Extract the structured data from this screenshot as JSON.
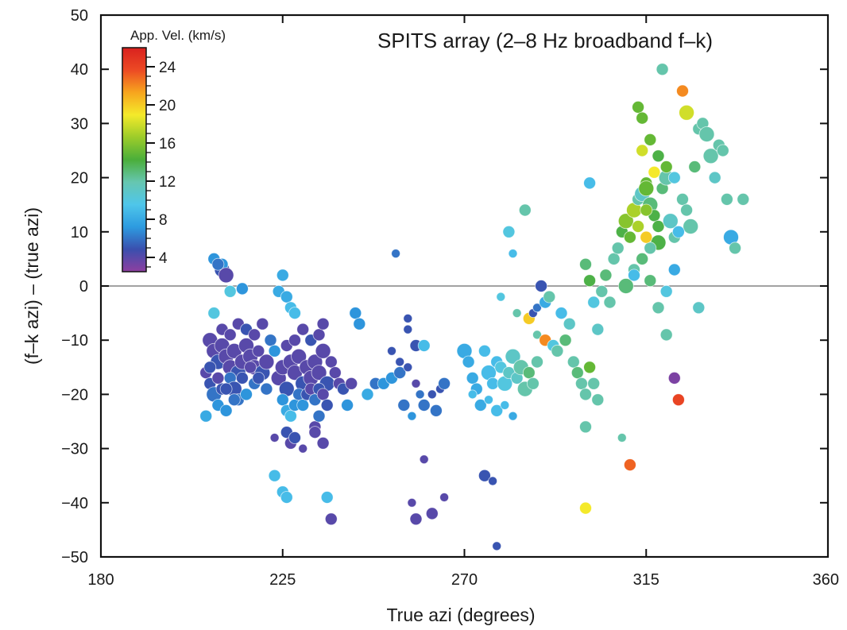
{
  "chart_data": {
    "type": "scatter",
    "title": "SPITS array (2–8 Hz broadband f–k)",
    "xlabel": "True azi (degrees)",
    "ylabel": "(f–k azi) – (true azi)",
    "xlim": [
      180,
      360
    ],
    "ylim": [
      -50,
      50
    ],
    "x_ticks": [
      180,
      225,
      270,
      315,
      360
    ],
    "x_tick_labels": [
      "180",
      "225",
      "270",
      "315",
      "360"
    ],
    "y_ticks": [
      -50,
      -40,
      -30,
      -20,
      -10,
      0,
      10,
      20,
      30,
      40,
      50
    ],
    "y_tick_labels": [
      "−50",
      "−40",
      "−30",
      "−20",
      "−10",
      "0",
      "10",
      "20",
      "30",
      "40",
      "50"
    ],
    "reference_line_y": 0,
    "grid": false,
    "colorbar": {
      "title": "App. Vel. (km/s)",
      "range": [
        2.5,
        26
      ],
      "ticks": [
        4,
        8,
        12,
        16,
        20,
        24
      ],
      "tick_labels": [
        "4",
        "8",
        "12",
        "16",
        "20",
        "24"
      ],
      "colors": [
        "#8e3fa0",
        "#3a4fae",
        "#2d9be0",
        "#4fc6ea",
        "#66c6b0",
        "#4aae3a",
        "#9ccc2a",
        "#f4ea2a",
        "#f7a51e",
        "#ec4a24",
        "#d9211f"
      ]
    },
    "legend": "colorbar top-left",
    "points_encoding": [
      "azimuth_deg",
      "azimuth_residual_deg",
      "apparent_velocity_kms",
      "size_class"
    ],
    "points": [
      [
        208,
        5,
        7,
        2
      ],
      [
        210,
        3,
        5,
        3
      ],
      [
        210,
        4,
        7,
        2
      ],
      [
        211,
        2,
        4,
        3
      ],
      [
        209,
        4,
        6,
        2
      ],
      [
        212,
        -1,
        10,
        2
      ],
      [
        208,
        -5,
        10,
        2
      ],
      [
        215,
        -0.5,
        7,
        2
      ],
      [
        207,
        -10,
        4,
        3
      ],
      [
        208,
        -12,
        4,
        3
      ],
      [
        209,
        -14,
        5,
        3
      ],
      [
        210,
        -11,
        4,
        3
      ],
      [
        211,
        -13,
        4,
        3
      ],
      [
        212,
        -15,
        4,
        3
      ],
      [
        213,
        -12,
        4,
        3
      ],
      [
        214,
        -16,
        5,
        3
      ],
      [
        215,
        -14,
        4,
        3
      ],
      [
        216,
        -11,
        4,
        3
      ],
      [
        217,
        -13,
        4,
        3
      ],
      [
        218,
        -15,
        4,
        3
      ],
      [
        219,
        -12,
        4,
        2
      ],
      [
        220,
        -16,
        5,
        3
      ],
      [
        221,
        -14,
        4,
        3
      ],
      [
        206,
        -16,
        4,
        2
      ],
      [
        207,
        -18,
        5,
        2
      ],
      [
        208,
        -20,
        6,
        3
      ],
      [
        209,
        -22,
        7,
        2
      ],
      [
        210,
        -19,
        5,
        2
      ],
      [
        211,
        -23,
        7,
        2
      ],
      [
        212,
        -17,
        6,
        2
      ],
      [
        213,
        -19,
        5,
        3
      ],
      [
        214,
        -21,
        6,
        2
      ],
      [
        206,
        -24,
        8,
        2
      ],
      [
        216,
        -20,
        7,
        2
      ],
      [
        218,
        -18,
        6,
        2
      ],
      [
        210,
        -8,
        4,
        2
      ],
      [
        212,
        -9,
        4,
        2
      ],
      [
        214,
        -7,
        4,
        2
      ],
      [
        216,
        -8,
        5,
        2
      ],
      [
        218,
        -9,
        4,
        2
      ],
      [
        220,
        -7,
        4,
        2
      ],
      [
        222,
        -10,
        6,
        2
      ],
      [
        207,
        -15,
        5,
        2
      ],
      [
        209,
        -17,
        4,
        2
      ],
      [
        211,
        -19,
        5,
        2
      ],
      [
        213,
        -21,
        6,
        2
      ],
      [
        215,
        -17,
        5,
        2
      ],
      [
        217,
        -15,
        4,
        2
      ],
      [
        219,
        -17,
        5,
        2
      ],
      [
        221,
        -19,
        6,
        2
      ],
      [
        223,
        -12,
        7,
        2
      ],
      [
        224,
        -17,
        4,
        3
      ],
      [
        225,
        -15,
        4,
        3
      ],
      [
        226,
        -19,
        5,
        3
      ],
      [
        227,
        -14,
        4,
        3
      ],
      [
        228,
        -16,
        4,
        3
      ],
      [
        229,
        -13,
        4,
        3
      ],
      [
        230,
        -18,
        5,
        3
      ],
      [
        231,
        -15,
        4,
        3
      ],
      [
        232,
        -17,
        4,
        3
      ],
      [
        233,
        -14,
        4,
        3
      ],
      [
        234,
        -16,
        4,
        3
      ],
      [
        235,
        -12,
        4,
        3
      ],
      [
        236,
        -18,
        5,
        3
      ],
      [
        237,
        -14,
        4,
        2
      ],
      [
        238,
        -16,
        4,
        2
      ],
      [
        225,
        -21,
        7,
        2
      ],
      [
        226,
        -23,
        8,
        2
      ],
      [
        227,
        -24,
        9,
        2
      ],
      [
        228,
        -22,
        7,
        2
      ],
      [
        229,
        -20,
        6,
        2
      ],
      [
        230,
        -22,
        7,
        2
      ],
      [
        231,
        -20,
        5,
        2
      ],
      [
        232,
        -19,
        4,
        2
      ],
      [
        233,
        -21,
        6,
        2
      ],
      [
        234,
        -19,
        5,
        2
      ],
      [
        235,
        -20,
        4,
        2
      ],
      [
        236,
        -22,
        5,
        2
      ],
      [
        226,
        -11,
        4,
        2
      ],
      [
        228,
        -10,
        4,
        2
      ],
      [
        230,
        -8,
        4,
        2
      ],
      [
        232,
        -10,
        5,
        2
      ],
      [
        234,
        -9,
        4,
        2
      ],
      [
        235,
        -7,
        4,
        2
      ],
      [
        224,
        -1,
        8,
        2
      ],
      [
        225,
        2,
        8,
        2
      ],
      [
        226,
        -2,
        8,
        2
      ],
      [
        227,
        -4,
        9,
        2
      ],
      [
        228,
        -5,
        9,
        2
      ],
      [
        223,
        -28,
        4,
        1
      ],
      [
        226,
        -27,
        5,
        2
      ],
      [
        227,
        -29,
        4,
        2
      ],
      [
        228,
        -28,
        5,
        2
      ],
      [
        230,
        -30,
        4,
        1
      ],
      [
        233,
        -26,
        4,
        2
      ],
      [
        234,
        -24,
        6,
        2
      ],
      [
        235,
        -29,
        4,
        2
      ],
      [
        233,
        -27,
        4,
        2
      ],
      [
        223,
        -35,
        9,
        2
      ],
      [
        225,
        -38,
        9,
        2
      ],
      [
        226,
        -39,
        9,
        2
      ],
      [
        236,
        -39,
        9,
        2
      ],
      [
        237,
        -43,
        4,
        2
      ],
      [
        239,
        -18,
        4,
        2
      ],
      [
        240,
        -19,
        5,
        2
      ],
      [
        241,
        -22,
        7,
        2
      ],
      [
        242,
        -18,
        4,
        2
      ],
      [
        243,
        -5,
        7,
        2
      ],
      [
        244,
        -7,
        7,
        2
      ],
      [
        246,
        -20,
        8,
        2
      ],
      [
        248,
        -18,
        6,
        2
      ],
      [
        250,
        -18,
        7,
        2
      ],
      [
        252,
        -17,
        7,
        2
      ],
      [
        254,
        -16,
        6,
        2
      ],
      [
        253,
        6,
        6,
        1
      ],
      [
        256,
        -6,
        5,
        1
      ],
      [
        256,
        -8,
        5,
        1
      ],
      [
        258,
        -11,
        5,
        2
      ],
      [
        260,
        -11,
        9,
        2
      ],
      [
        252,
        -12,
        5,
        1
      ],
      [
        254,
        -14,
        5,
        1
      ],
      [
        256,
        -15,
        5,
        1
      ],
      [
        258,
        -18,
        4,
        1
      ],
      [
        255,
        -22,
        6,
        2
      ],
      [
        257,
        -24,
        7,
        1
      ],
      [
        259,
        -20,
        6,
        1
      ],
      [
        260,
        -22,
        6,
        2
      ],
      [
        262,
        -20,
        5,
        1
      ],
      [
        263,
        -23,
        6,
        2
      ],
      [
        264,
        -19,
        5,
        1
      ],
      [
        265,
        -18,
        6,
        2
      ],
      [
        260,
        -32,
        4,
        1
      ],
      [
        257,
        -40,
        4,
        1
      ],
      [
        258,
        -43,
        4,
        2
      ],
      [
        262,
        -42,
        4,
        2
      ],
      [
        265,
        -39,
        4,
        1
      ],
      [
        270,
        -12,
        8,
        3
      ],
      [
        271,
        -14,
        8,
        2
      ],
      [
        272,
        -17,
        8,
        2
      ],
      [
        273,
        -19,
        8,
        2
      ],
      [
        275,
        -12,
        9,
        2
      ],
      [
        276,
        -16,
        9,
        3
      ],
      [
        277,
        -18,
        9,
        2
      ],
      [
        278,
        -14,
        9,
        2
      ],
      [
        279,
        -15,
        10,
        2
      ],
      [
        280,
        -18,
        10,
        3
      ],
      [
        281,
        -16,
        11,
        2
      ],
      [
        282,
        -13,
        11,
        3
      ],
      [
        283,
        -17,
        11,
        2
      ],
      [
        284,
        -15,
        12,
        3
      ],
      [
        285,
        -19,
        12,
        3
      ],
      [
        286,
        -16,
        13,
        2
      ],
      [
        287,
        -18,
        12,
        2
      ],
      [
        288,
        -14,
        12,
        2
      ],
      [
        272,
        -20,
        9,
        1
      ],
      [
        274,
        -22,
        8,
        2
      ],
      [
        276,
        -21,
        9,
        1
      ],
      [
        278,
        -23,
        9,
        2
      ],
      [
        280,
        -22,
        9,
        1
      ],
      [
        282,
        -24,
        8,
        1
      ],
      [
        275,
        -35,
        5,
        2
      ],
      [
        277,
        -36,
        5,
        1
      ],
      [
        278,
        -48,
        5,
        1
      ],
      [
        279,
        -2,
        10,
        1
      ],
      [
        281,
        10,
        10,
        2
      ],
      [
        282,
        6,
        9,
        1
      ],
      [
        285,
        14,
        12,
        2
      ],
      [
        283,
        -5,
        12,
        1
      ],
      [
        286,
        -6,
        20,
        2
      ],
      [
        287,
        -5,
        5,
        1
      ],
      [
        288,
        -4,
        6,
        1
      ],
      [
        288,
        -9,
        12,
        1
      ],
      [
        289,
        0,
        5,
        2
      ],
      [
        290,
        -3,
        8,
        2
      ],
      [
        290,
        -10,
        22,
        2
      ],
      [
        291,
        -2,
        12,
        2
      ],
      [
        292,
        -11,
        10,
        2
      ],
      [
        293,
        -12,
        12,
        2
      ],
      [
        294,
        -5,
        9,
        2
      ],
      [
        295,
        -10,
        13,
        2
      ],
      [
        296,
        -7,
        11,
        2
      ],
      [
        297,
        -14,
        12,
        2
      ],
      [
        298,
        -16,
        13,
        2
      ],
      [
        299,
        -18,
        12,
        2
      ],
      [
        300,
        -20,
        12,
        2
      ],
      [
        301,
        -15,
        15,
        2
      ],
      [
        302,
        -18,
        12,
        2
      ],
      [
        303,
        -21,
        12,
        2
      ],
      [
        300,
        -26,
        12,
        2
      ],
      [
        300,
        -41,
        19,
        2
      ],
      [
        301,
        19,
        9,
        2
      ],
      [
        300,
        4,
        13,
        2
      ],
      [
        301,
        1,
        14,
        2
      ],
      [
        302,
        -3,
        10,
        2
      ],
      [
        303,
        -8,
        11,
        2
      ],
      [
        304,
        -1,
        12,
        2
      ],
      [
        305,
        2,
        13,
        2
      ],
      [
        306,
        -3,
        12,
        2
      ],
      [
        307,
        5,
        12,
        2
      ],
      [
        308,
        7,
        12,
        2
      ],
      [
        309,
        10,
        14,
        2
      ],
      [
        310,
        12,
        16,
        3
      ],
      [
        311,
        9,
        15,
        2
      ],
      [
        312,
        14,
        17,
        3
      ],
      [
        313,
        16,
        12,
        2
      ],
      [
        314,
        17,
        11,
        3
      ],
      [
        315,
        19,
        15,
        2
      ],
      [
        316,
        15,
        13,
        3
      ],
      [
        317,
        13,
        14,
        2
      ],
      [
        318,
        11,
        14,
        2
      ],
      [
        319,
        18,
        13,
        2
      ],
      [
        320,
        20,
        12,
        3
      ],
      [
        321,
        12,
        11,
        3
      ],
      [
        322,
        9,
        12,
        2
      ],
      [
        310,
        0,
        13,
        3
      ],
      [
        312,
        3,
        12,
        2
      ],
      [
        314,
        5,
        13,
        2
      ],
      [
        316,
        1,
        13,
        2
      ],
      [
        318,
        -4,
        12,
        2
      ],
      [
        320,
        -1,
        10,
        2
      ],
      [
        309,
        -28,
        12,
        1
      ],
      [
        311,
        -33,
        23,
        2
      ],
      [
        312,
        2,
        9,
        2
      ],
      [
        314,
        25,
        18,
        2
      ],
      [
        313,
        33,
        15,
        2
      ],
      [
        314,
        31,
        15,
        2
      ],
      [
        316,
        27,
        15,
        2
      ],
      [
        318,
        24,
        14,
        2
      ],
      [
        320,
        22,
        15,
        2
      ],
      [
        322,
        20,
        10,
        2
      ],
      [
        324,
        16,
        12,
        2
      ],
      [
        325,
        14,
        12,
        2
      ],
      [
        326,
        11,
        12,
        3
      ],
      [
        327,
        22,
        13,
        2
      ],
      [
        328,
        29,
        12,
        2
      ],
      [
        329,
        30,
        12,
        2
      ],
      [
        330,
        28,
        12,
        3
      ],
      [
        331,
        24,
        12,
        3
      ],
      [
        332,
        20,
        11,
        2
      ],
      [
        333,
        26,
        12,
        2
      ],
      [
        334,
        25,
        12,
        2
      ],
      [
        335,
        16,
        12,
        2
      ],
      [
        336,
        9,
        8,
        3
      ],
      [
        337,
        7,
        12,
        2
      ],
      [
        339,
        16,
        12,
        2
      ],
      [
        323,
        10,
        9,
        2
      ],
      [
        322,
        3,
        8,
        2
      ],
      [
        322,
        -17,
        3,
        2
      ],
      [
        323,
        -21,
        24,
        2
      ],
      [
        324,
        36,
        22,
        2
      ],
      [
        325,
        32,
        18,
        3
      ],
      [
        319,
        40,
        12,
        2
      ],
      [
        328,
        -4,
        11,
        2
      ],
      [
        320,
        -9,
        12,
        2
      ],
      [
        318,
        8,
        14,
        3
      ],
      [
        316,
        7,
        12,
        2
      ],
      [
        315,
        18,
        15,
        3
      ],
      [
        317,
        21,
        19,
        2
      ],
      [
        315,
        9,
        20,
        2
      ],
      [
        315,
        14,
        16,
        2
      ],
      [
        313,
        11,
        17,
        2
      ]
    ]
  }
}
